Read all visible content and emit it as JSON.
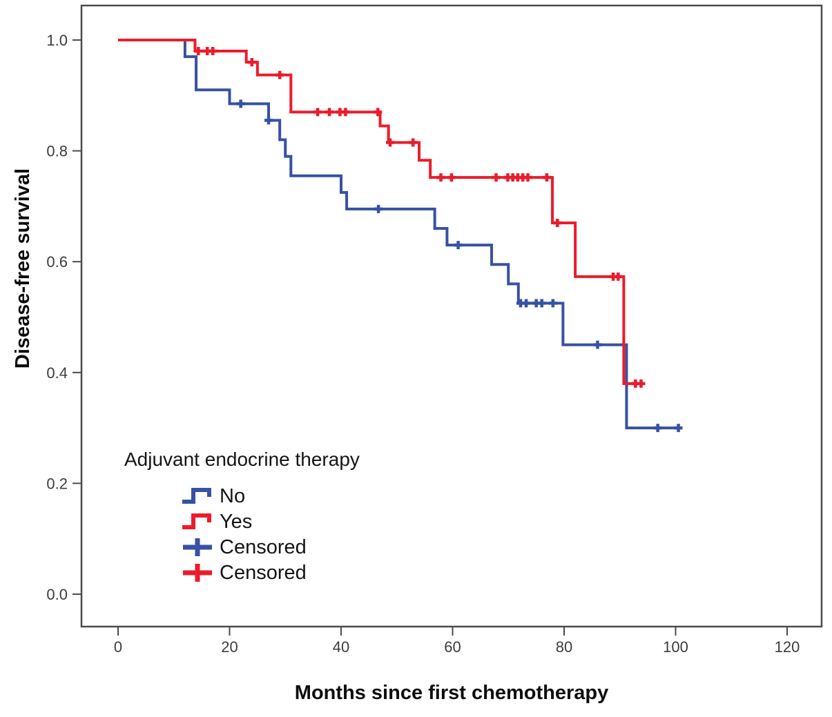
{
  "figure": {
    "background": "#ffffff",
    "plot_border_color": "#4a4a4a",
    "tick_color": "#4a4a4a",
    "tick_label_color": "#3c3c3c"
  },
  "chart_data": {
    "type": "line",
    "subtype": "kaplan-meier-step-survival",
    "title": "",
    "xlabel": "Months since first chemotherapy",
    "ylabel": "Disease-free survival",
    "xlim": [
      0,
      120
    ],
    "ylim": [
      0.0,
      1.0
    ],
    "grid": false,
    "x_ticks": [
      0,
      20,
      40,
      60,
      80,
      100,
      120
    ],
    "y_ticks": [
      1.0,
      0.8,
      0.6,
      0.4,
      0.2,
      0.0
    ],
    "y_tick_labels": [
      "1.0",
      "0.8",
      "0.6",
      "0.4",
      "0.2",
      "0.0"
    ],
    "legend": {
      "title": "Adjuvant endocrine therapy",
      "position": "lower-left",
      "entries": [
        {
          "label": "No",
          "marker": "step-line",
          "color": "#3751a3"
        },
        {
          "label": "Yes",
          "marker": "step-line",
          "color": "#ea1c2c"
        },
        {
          "label": "Censored",
          "marker": "plus-marker",
          "color": "#3751a3"
        },
        {
          "label": "Censored",
          "marker": "plus-marker",
          "color": "#ea1c2c"
        }
      ]
    },
    "series": [
      {
        "name": "No",
        "color": "#3751a3",
        "start": [
          0,
          1.0
        ],
        "steps": [
          [
            12,
            0.97
          ],
          [
            14,
            0.91
          ],
          [
            20,
            0.885
          ],
          [
            27,
            0.855
          ],
          [
            29,
            0.82
          ],
          [
            30,
            0.79
          ],
          [
            31,
            0.755
          ],
          [
            40,
            0.725
          ],
          [
            41,
            0.695
          ],
          [
            56.8,
            0.66
          ],
          [
            59,
            0.63
          ],
          [
            67,
            0.595
          ],
          [
            70,
            0.56
          ],
          [
            71.8,
            0.525
          ],
          [
            79.8,
            0.45
          ],
          [
            91.2,
            0.3
          ]
        ],
        "end_month": 101,
        "censored": [
          [
            22,
            0.885
          ],
          [
            27,
            0.855
          ],
          [
            46.7,
            0.695
          ],
          [
            61,
            0.63
          ],
          [
            72.2,
            0.525
          ],
          [
            73.2,
            0.525
          ],
          [
            75,
            0.525
          ],
          [
            76,
            0.525
          ],
          [
            78,
            0.525
          ],
          [
            86,
            0.45
          ],
          [
            96.8,
            0.3
          ],
          [
            100.5,
            0.3
          ]
        ]
      },
      {
        "name": "Yes",
        "color": "#ea1c2c",
        "start": [
          0,
          1.0
        ],
        "steps": [
          [
            13.8,
            0.98
          ],
          [
            23,
            0.96
          ],
          [
            25,
            0.937
          ],
          [
            31,
            0.87
          ],
          [
            47,
            0.845
          ],
          [
            48.5,
            0.815
          ],
          [
            54,
            0.783
          ],
          [
            56,
            0.752
          ],
          [
            77.9,
            0.67
          ],
          [
            82,
            0.573
          ],
          [
            90.7,
            0.38
          ]
        ],
        "end_month": 94.5,
        "censored": [
          [
            14.4,
            0.98
          ],
          [
            16,
            0.98
          ],
          [
            17,
            0.98
          ],
          [
            24,
            0.96
          ],
          [
            29,
            0.937
          ],
          [
            35.8,
            0.87
          ],
          [
            37.9,
            0.87
          ],
          [
            39.8,
            0.87
          ],
          [
            40.8,
            0.87
          ],
          [
            46.6,
            0.87
          ],
          [
            48.8,
            0.815
          ],
          [
            52.9,
            0.815
          ],
          [
            57.9,
            0.752
          ],
          [
            59.8,
            0.752
          ],
          [
            67.8,
            0.752
          ],
          [
            69.9,
            0.752
          ],
          [
            70.8,
            0.752
          ],
          [
            71.7,
            0.752
          ],
          [
            72.6,
            0.752
          ],
          [
            73.5,
            0.752
          ],
          [
            76.9,
            0.752
          ],
          [
            78.8,
            0.67
          ],
          [
            88.8,
            0.573
          ],
          [
            89.7,
            0.573
          ],
          [
            92.8,
            0.38
          ],
          [
            93.8,
            0.38
          ]
        ]
      }
    ]
  }
}
